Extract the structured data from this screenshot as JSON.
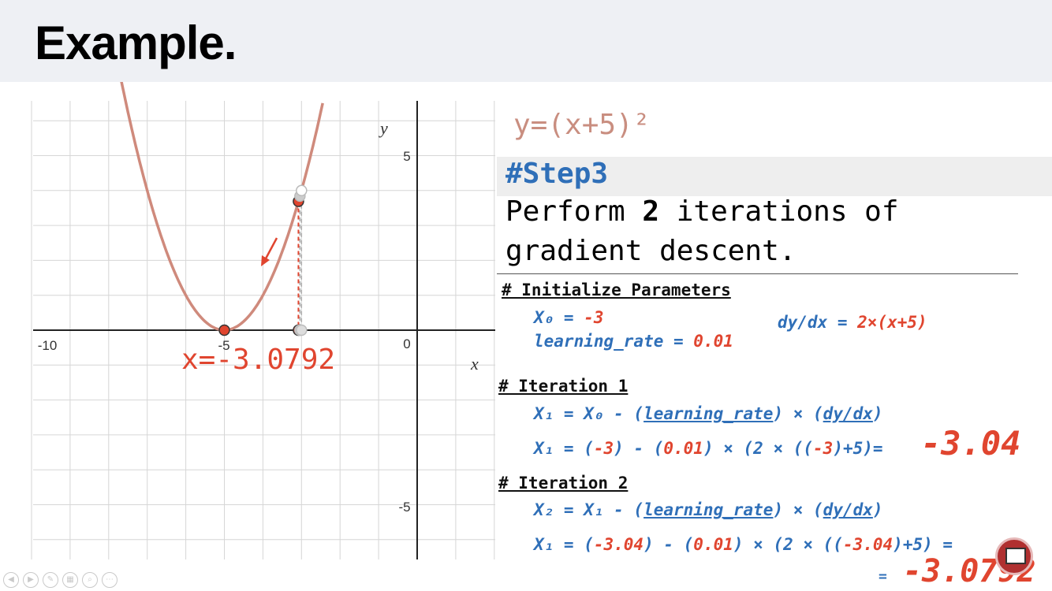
{
  "slide": {
    "title": "Example.",
    "equation": "y=(x+5)²",
    "step_label": "#Step3",
    "task_line1_pre": "Perform ",
    "task_line1_bold": "2",
    "task_line1_post": " iterations of",
    "task_line2": "gradient descent.",
    "x_annotation": "x=-3.0792"
  },
  "code": {
    "init_header": "# Initialize Parameters",
    "x0_label": "X₀ = ",
    "x0_value": "-3",
    "lr_label": "learning_rate = ",
    "lr_value": "0.01",
    "deriv_label": "dy/dx = ",
    "deriv_value": "2×(x+5)",
    "iter1_header": "# Iteration 1",
    "iter1_formula_a": "X₁ = X₀ - (",
    "iter1_formula_lr": "learning_rate",
    "iter1_formula_b": ") × (",
    "iter1_formula_d": "dy/dx",
    "iter1_formula_c": ")",
    "iter1_calc_a": "X₁ = (",
    "iter1_calc_x": "-3",
    "iter1_calc_b": ") - (",
    "iter1_calc_lr": "0.01",
    "iter1_calc_c": ") × (2 × ((",
    "iter1_calc_x2": "-3",
    "iter1_calc_d": ")+5)= ",
    "iter1_result": "-3.04",
    "iter2_header": "# Iteration 2",
    "iter2_formula_a": "X₂ = X₁ - (",
    "iter2_formula_lr": "learning_rate",
    "iter2_formula_b": ") × (",
    "iter2_formula_d": "dy/dx",
    "iter2_formula_c": ")",
    "iter2_calc_a": "X₁ = (",
    "iter2_calc_x": "-3.04",
    "iter2_calc_b": ") - (",
    "iter2_calc_lr": "0.01",
    "iter2_calc_c": ") × (2 × ((",
    "iter2_calc_x2": "-3.04",
    "iter2_calc_d": ")+5) = ",
    "iter2_eq2": "= ",
    "iter2_result": "-3.0792"
  },
  "graph": {
    "x_axis_label": "x",
    "y_axis_label": "y",
    "tick_x_neg10": "-10",
    "tick_x_neg5": "-5",
    "tick_origin": "0",
    "tick_y_5": "5",
    "tick_y_neg5": "-5",
    "x_range": [
      -10.5,
      2
    ],
    "y_range": [
      -6.5,
      6.5
    ],
    "curve_color": "#cf8a7c",
    "point_color": "#e0452f",
    "points": [
      {
        "x": -5,
        "y": 0,
        "state": "minimum"
      },
      {
        "x": -3.0792,
        "y": 3.69,
        "state": "current"
      },
      {
        "x": -3.04,
        "y": 3.84,
        "state": "previous"
      },
      {
        "x": -3,
        "y": 4,
        "state": "start"
      }
    ]
  },
  "icons": [
    "prev-icon",
    "next-icon",
    "pen-icon",
    "slides-icon",
    "zoom-icon",
    "more-icon",
    "presenter-icon"
  ]
}
